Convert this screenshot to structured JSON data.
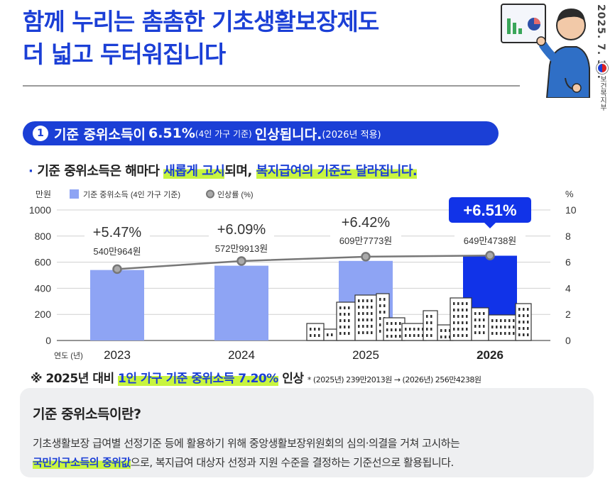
{
  "header": {
    "title_line1": "함께 누리는 촘촘한 기초생활보장제도",
    "title_line2": "더 넓고 두터워집니다",
    "date": "2025. 7. 31.",
    "ministry": "보건복지부"
  },
  "section1": {
    "number": "1",
    "text_a": "기준 중위소득이",
    "text_b": "6.51%",
    "text_c": "(4인 가구 기준)",
    "text_d": "인상됩니다.",
    "text_e": "(2026년 적용)"
  },
  "bullet": {
    "dot": "·",
    "text_a": "기준 중위소득은 해마다",
    "highlight_a": "새롭게 고시",
    "text_b": "되며,",
    "highlight_b": "복지급여의 기준도 달라집니다."
  },
  "chart_data": {
    "type": "bar",
    "left_unit": "만원",
    "right_unit": "%",
    "legend": [
      {
        "label": "기준 중위소득 (4인 가구 기준)",
        "color": "#8ea4f4",
        "shape": "square"
      },
      {
        "label": "인상률 (%)",
        "color": "#777777",
        "shape": "circle"
      }
    ],
    "x_prefix": "연도 (년)",
    "categories": [
      "2023",
      "2024",
      "2025",
      "2026"
    ],
    "series": [
      {
        "name": "기준 중위소득 (4인 가구 기준)",
        "values": [
          540.0964,
          572.9913,
          609.7773,
          649.4738
        ],
        "axis": "left"
      },
      {
        "name": "인상률 (%)",
        "values": [
          5.47,
          6.09,
          6.42,
          6.51
        ],
        "axis": "right"
      }
    ],
    "value_labels": [
      "540만964원",
      "572만9913원",
      "609만7773원",
      "649만4738원"
    ],
    "rate_labels": [
      "+5.47%",
      "+6.09%",
      "+6.42%",
      "+6.51%"
    ],
    "left_ticks": [
      "0",
      "200",
      "400",
      "600",
      "800",
      "1000"
    ],
    "right_ticks": [
      "0",
      "2",
      "4",
      "6",
      "8",
      "10"
    ],
    "ylim_left": [
      0,
      1000
    ],
    "ylim_right": [
      0,
      10
    ],
    "grid": true,
    "bar_color": "#8ea4f4",
    "highlight_color": "#1133e8",
    "line_color": "#777777"
  },
  "note": {
    "prefix": "※ 2025년 대비",
    "highlight": "1인 가구 기준 중위소득 7.20%",
    "suffix": "인상",
    "small": "* (2025년) 239만2013원 → (2026년) 256만4238원"
  },
  "info_box": {
    "heading": "기준 중위소득이란?",
    "line1": "기초생활보장 급여별 선정기준 등에 활용하기 위해 중앙생활보장위원회의 심의·의결을 거쳐 고시하는",
    "line2_highlight": "국민가구소득의 중위값",
    "line2_rest": "으로, 복지급여 대상자 선정과 지원 수준을 결정하는 기준선으로 활용됩니다."
  },
  "colors": {
    "brand_blue": "#1b3fd6",
    "highlight_green": "#c8f53f",
    "box_bg": "#eeeff1"
  }
}
